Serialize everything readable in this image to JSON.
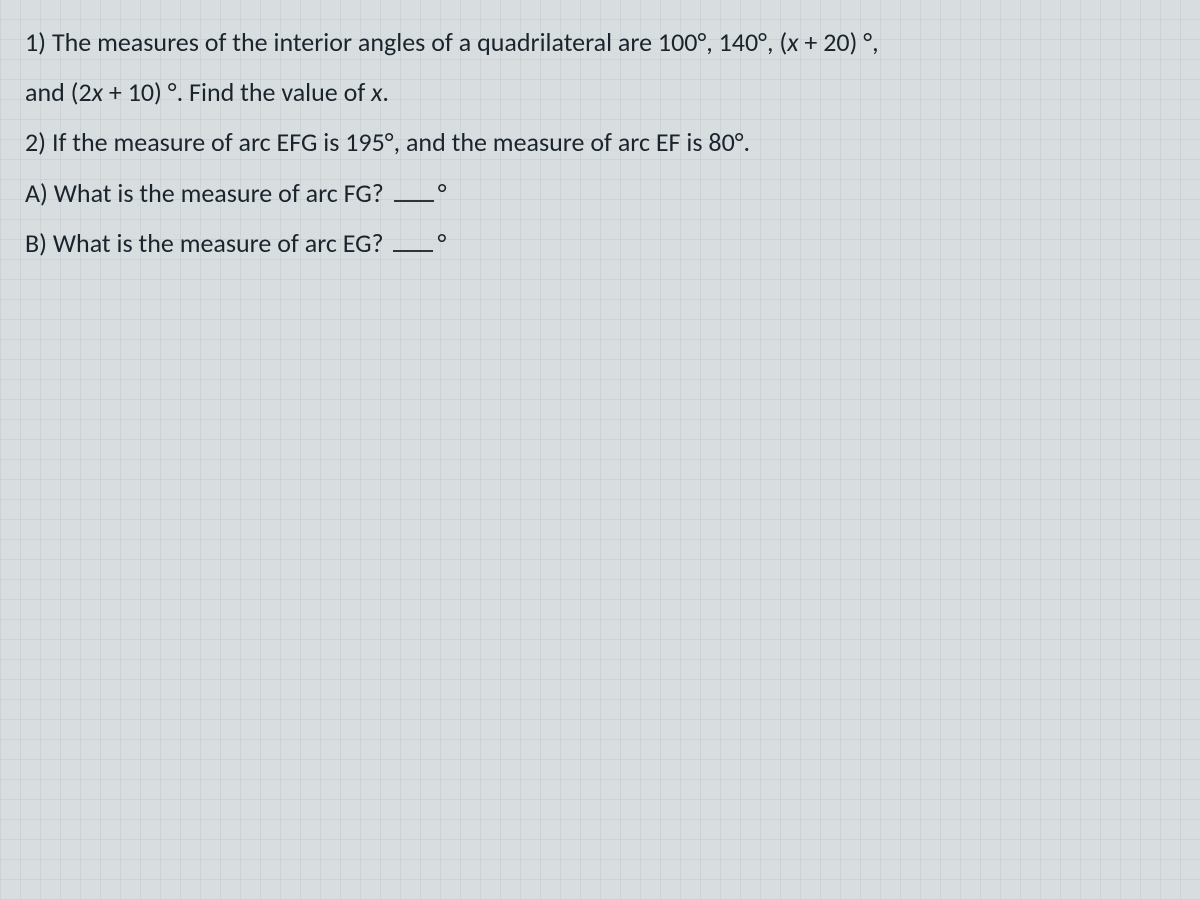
{
  "background_color": "#d8dee0",
  "grid_color": "#b4b9bc",
  "text_color": "#1a242c",
  "font_family": "Calibri",
  "font_size_pt": 20,
  "question1": {
    "prefix": "1) The measures of the interior angles of a quadrilateral are 100°, 140°, (",
    "var1": "x",
    "mid1": " + 20) °,",
    "line2_prefix": "and (2",
    "var2": "x",
    "line2_mid": " + 10) °. Find the value of ",
    "var3": "x",
    "line2_suffix": "."
  },
  "question2": {
    "text": "2) If the measure of arc EFG is 195°, and the measure of arc EF is 80°."
  },
  "question2a": {
    "text": "A) What is the measure of arc FG?",
    "suffix": "°"
  },
  "question2b": {
    "text": "B) What is the measure of arc EG?",
    "suffix": "°"
  }
}
